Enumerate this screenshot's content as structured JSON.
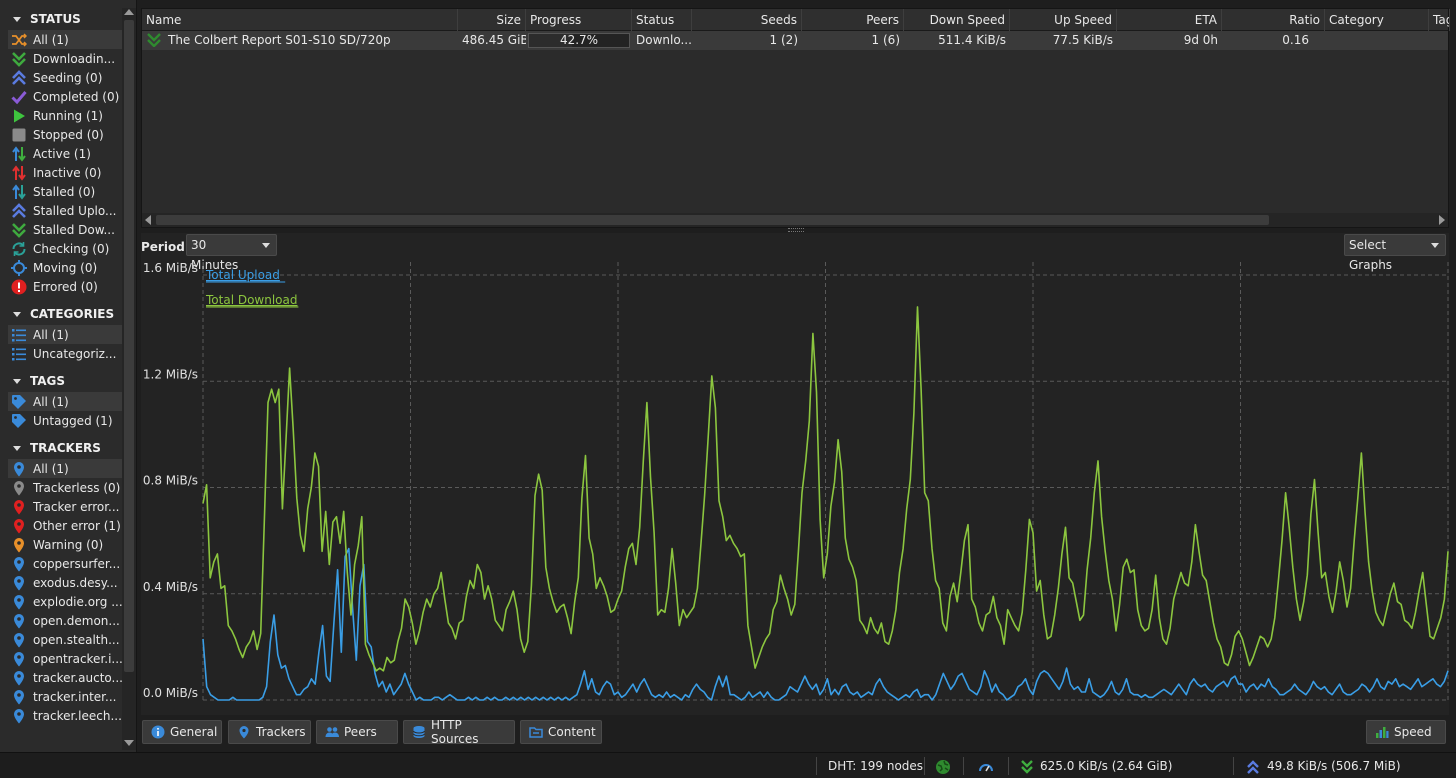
{
  "sidebar": {
    "status_title": "STATUS",
    "status_items": [
      {
        "label": "All (1)",
        "icon": "all-icon",
        "color": "#e8902a"
      },
      {
        "label": "Downloadin...",
        "icon": "download-icon",
        "color": "#3faa3f"
      },
      {
        "label": "Seeding (0)",
        "icon": "seeding-icon",
        "color": "#5a7be0"
      },
      {
        "label": "Completed (0)",
        "icon": "check-icon",
        "color": "#8a5bd6"
      },
      {
        "label": "Running (1)",
        "icon": "play-icon",
        "color": "#3ec43e"
      },
      {
        "label": "Stopped (0)",
        "icon": "stop-icon",
        "color": "#8a8a8a"
      },
      {
        "label": "Active (1)",
        "icon": "active-arrows-icon",
        "color": "#3faa3f"
      },
      {
        "label": "Inactive (0)",
        "icon": "inactive-arrows-icon",
        "color": "#e03030"
      },
      {
        "label": "Stalled (0)",
        "icon": "stalled-arrows-icon",
        "color": "#3a9ad9"
      },
      {
        "label": "Stalled Uplo...",
        "icon": "stalled-upload-icon",
        "color": "#5a7be0"
      },
      {
        "label": "Stalled Dow...",
        "icon": "stalled-download-icon",
        "color": "#3faa3f"
      },
      {
        "label": "Checking (0)",
        "icon": "checking-icon",
        "color": "#2aa198"
      },
      {
        "label": "Moving (0)",
        "icon": "moving-icon",
        "color": "#3a8ad9"
      },
      {
        "label": "Errored (0)",
        "icon": "error-icon",
        "color": "#e02020"
      }
    ],
    "categories_title": "CATEGORIES",
    "category_items": [
      {
        "label": "All (1)",
        "icon": "list-icon"
      },
      {
        "label": "Uncategoriz...",
        "icon": "list-icon"
      }
    ],
    "tags_title": "TAGS",
    "tag_items": [
      {
        "label": "All (1)",
        "icon": "tag-icon"
      },
      {
        "label": "Untagged (1)",
        "icon": "tag-icon"
      }
    ],
    "trackers_title": "TRACKERS",
    "tracker_items": [
      {
        "label": "All (1)",
        "color": "#3a8ad9"
      },
      {
        "label": "Trackerless (0)",
        "color": "#8a8a8a"
      },
      {
        "label": "Tracker error...",
        "color": "#e02020"
      },
      {
        "label": "Other error (1)",
        "color": "#e02020"
      },
      {
        "label": "Warning (0)",
        "color": "#e8902a"
      },
      {
        "label": "coppersurfer...",
        "color": "#3a8ad9"
      },
      {
        "label": "exodus.desy...",
        "color": "#3a8ad9"
      },
      {
        "label": "explodie.org ...",
        "color": "#3a8ad9"
      },
      {
        "label": "open.demon...",
        "color": "#3a8ad9"
      },
      {
        "label": "open.stealth...",
        "color": "#3a8ad9"
      },
      {
        "label": "opentracker.i...",
        "color": "#3a8ad9"
      },
      {
        "label": "tracker.aucto...",
        "color": "#3a8ad9"
      },
      {
        "label": "tracker.inter...",
        "color": "#3a8ad9"
      },
      {
        "label": "tracker.leech...",
        "color": "#3a8ad9"
      }
    ]
  },
  "table": {
    "columns": [
      "Name",
      "Size",
      "Progress",
      "Status",
      "Seeds",
      "Peers",
      "Down Speed",
      "Up Speed",
      "ETA",
      "Ratio",
      "Category",
      "Tag"
    ],
    "row": {
      "name": "The Colbert Report S01-S10 SD/720p",
      "size": "486.45 GiB",
      "progress": 0.427,
      "progress_text": "42.7%",
      "status": "Downlo...",
      "seeds": "1 (2)",
      "peers": "1 (6)",
      "down_speed": "511.4 KiB/s",
      "up_speed": "77.5 KiB/s",
      "eta": "9d 0h",
      "ratio": "0.16",
      "status_icon": "downloading-icon",
      "status_color": "#2f8a2f"
    }
  },
  "graph": {
    "period_label": "Period:",
    "period_value": "30 Minutes",
    "select_graphs_label": "Select Graphs"
  },
  "chart_data": {
    "type": "line",
    "title": "",
    "xlabel": "",
    "ylabel": "",
    "ylim": [
      0,
      1.6
    ],
    "y_ticks": [
      0.0,
      0.4,
      0.8,
      1.2,
      1.6
    ],
    "y_tick_labels": [
      "0.0 MiB/s",
      "0.4 MiB/s",
      "0.8 MiB/s",
      "1.2 MiB/s",
      "1.6 MiB/s"
    ],
    "grid": true,
    "legend_position": "top-left",
    "series": [
      {
        "name": "Total Upload",
        "color": "#3a9ee6",
        "values": [
          0.23,
          0.05,
          0.02,
          0.01,
          0.0,
          0.0,
          0.0,
          0.0,
          0.01,
          0.0,
          0.0,
          0.0,
          0.0,
          0.0,
          0.0,
          0.0,
          0.01,
          0.05,
          0.22,
          0.32,
          0.17,
          0.12,
          0.13,
          0.08,
          0.05,
          0.02,
          0.02,
          0.04,
          0.05,
          0.08,
          0.06,
          0.18,
          0.28,
          0.09,
          0.07,
          0.29,
          0.49,
          0.18,
          0.54,
          0.57,
          0.35,
          0.15,
          0.43,
          0.51,
          0.22,
          0.2,
          0.1,
          0.05,
          0.07,
          0.03,
          0.06,
          0.02,
          0.04,
          0.06,
          0.1,
          0.06,
          0.03,
          0.0,
          0.01,
          0.0,
          0.0,
          0.0,
          0.01,
          0.01,
          0.0,
          0.01,
          0.02,
          0.01,
          0.0,
          0.0,
          0.0,
          0.01,
          0.0,
          0.01,
          0.0,
          0.0,
          0.01,
          0.0,
          0.01,
          0.0,
          0.0,
          0.01,
          0.0,
          0.01,
          0.0,
          0.01,
          0.0,
          0.01,
          0.0,
          0.01,
          0.0,
          0.01,
          0.0,
          0.01,
          0.0,
          0.01,
          0.0,
          0.01,
          0.0,
          0.01,
          0.02,
          0.06,
          0.11,
          0.04,
          0.08,
          0.03,
          0.02,
          0.05,
          0.07,
          0.06,
          0.02,
          0.03,
          0.01,
          0.02,
          0.04,
          0.06,
          0.03,
          0.06,
          0.08,
          0.05,
          0.02,
          0.01,
          0.02,
          0.01,
          0.03,
          0.01,
          0.02,
          0.01,
          0.0,
          0.02,
          0.01,
          0.04,
          0.06,
          0.04,
          0.03,
          0.01,
          0.0,
          0.05,
          0.09,
          0.05,
          0.09,
          0.02,
          0.02,
          0.01,
          0.0,
          0.01,
          0.03,
          0.01,
          0.02,
          0.03,
          0.01,
          0.03,
          0.01,
          0.0,
          0.0,
          0.01,
          0.02,
          0.05,
          0.04,
          0.03,
          0.06,
          0.09,
          0.06,
          0.04,
          0.06,
          0.02,
          0.04,
          0.08,
          0.02,
          0.04,
          0.02,
          0.05,
          0.06,
          0.03,
          0.02,
          0.03,
          0.01,
          0.02,
          0.03,
          0.02,
          0.06,
          0.08,
          0.05,
          0.03,
          0.02,
          0.01,
          0.0,
          0.01,
          0.02,
          0.01,
          0.03,
          0.04,
          0.01,
          0.02,
          0.02,
          0.0,
          0.02,
          0.06,
          0.1,
          0.07,
          0.04,
          0.06,
          0.09,
          0.1,
          0.07,
          0.04,
          0.03,
          0.02,
          0.05,
          0.11,
          0.08,
          0.03,
          0.06,
          0.03,
          0.02,
          0.0,
          0.01,
          0.02,
          0.05,
          0.06,
          0.08,
          0.04,
          0.02,
          0.07,
          0.1,
          0.11,
          0.1,
          0.08,
          0.06,
          0.04,
          0.07,
          0.12,
          0.06,
          0.04,
          0.05,
          0.03,
          0.03,
          0.08,
          0.03,
          0.02,
          0.01,
          0.02,
          0.04,
          0.07,
          0.03,
          0.02,
          0.04,
          0.08,
          0.03,
          0.02,
          0.02,
          0.01,
          0.02,
          0.01,
          0.01,
          0.02,
          0.03,
          0.04,
          0.03,
          0.02,
          0.04,
          0.06,
          0.04,
          0.02,
          0.06,
          0.08,
          0.06,
          0.05,
          0.06,
          0.04,
          0.03,
          0.05,
          0.06,
          0.07,
          0.05,
          0.08,
          0.09,
          0.06,
          0.06,
          0.03,
          0.05,
          0.06,
          0.04,
          0.06,
          0.05,
          0.08,
          0.05,
          0.04,
          0.02,
          0.02,
          0.03,
          0.04,
          0.06,
          0.04,
          0.03,
          0.02,
          0.04,
          0.07,
          0.05,
          0.04,
          0.05,
          0.03,
          0.02,
          0.04,
          0.06,
          0.03,
          0.02,
          0.02,
          0.03,
          0.04,
          0.06,
          0.05,
          0.03,
          0.05,
          0.08,
          0.05,
          0.04,
          0.07,
          0.06,
          0.08,
          0.05,
          0.06,
          0.05,
          0.04,
          0.06,
          0.08,
          0.05,
          0.06,
          0.07,
          0.08,
          0.06,
          0.05,
          0.07,
          0.11
        ]
      },
      {
        "name": "Total Download",
        "color": "#8cc63f",
        "values": [
          0.74,
          0.81,
          0.46,
          0.52,
          0.55,
          0.42,
          0.43,
          0.28,
          0.26,
          0.23,
          0.19,
          0.16,
          0.2,
          0.22,
          0.26,
          0.19,
          0.25,
          0.67,
          1.12,
          1.17,
          1.12,
          1.17,
          0.72,
          0.98,
          1.25,
          1.02,
          0.76,
          0.62,
          0.56,
          0.72,
          0.8,
          0.93,
          0.88,
          0.56,
          0.71,
          0.51,
          0.67,
          0.69,
          0.59,
          0.71,
          0.48,
          0.32,
          0.51,
          0.58,
          0.69,
          0.21,
          0.17,
          0.14,
          0.11,
          0.12,
          0.11,
          0.16,
          0.14,
          0.15,
          0.22,
          0.27,
          0.38,
          0.35,
          0.29,
          0.21,
          0.26,
          0.33,
          0.38,
          0.35,
          0.4,
          0.42,
          0.48,
          0.38,
          0.29,
          0.27,
          0.23,
          0.29,
          0.3,
          0.39,
          0.45,
          0.42,
          0.51,
          0.48,
          0.38,
          0.43,
          0.38,
          0.3,
          0.28,
          0.26,
          0.34,
          0.37,
          0.41,
          0.34,
          0.23,
          0.18,
          0.22,
          0.43,
          0.77,
          0.85,
          0.79,
          0.5,
          0.42,
          0.37,
          0.33,
          0.35,
          0.36,
          0.31,
          0.25,
          0.37,
          0.46,
          0.76,
          0.92,
          0.61,
          0.55,
          0.42,
          0.46,
          0.43,
          0.39,
          0.33,
          0.34,
          0.38,
          0.41,
          0.5,
          0.57,
          0.59,
          0.51,
          0.65,
          0.9,
          1.12,
          0.84,
          0.63,
          0.32,
          0.34,
          0.33,
          0.42,
          0.57,
          0.44,
          0.28,
          0.34,
          0.31,
          0.33,
          0.35,
          0.42,
          0.59,
          0.77,
          0.99,
          1.22,
          1.1,
          0.75,
          0.69,
          0.6,
          0.62,
          0.59,
          0.57,
          0.54,
          0.55,
          0.28,
          0.2,
          0.12,
          0.16,
          0.2,
          0.23,
          0.25,
          0.34,
          0.37,
          0.47,
          0.42,
          0.38,
          0.32,
          0.36,
          0.56,
          0.78,
          0.9,
          1.05,
          1.38,
          1.16,
          0.68,
          0.46,
          0.55,
          0.73,
          0.82,
          0.98,
          0.86,
          0.61,
          0.53,
          0.5,
          0.45,
          0.3,
          0.28,
          0.25,
          0.31,
          0.27,
          0.25,
          0.29,
          0.22,
          0.21,
          0.26,
          0.34,
          0.48,
          0.57,
          0.72,
          0.83,
          1.08,
          1.48,
          1.17,
          0.78,
          0.75,
          0.57,
          0.45,
          0.42,
          0.29,
          0.26,
          0.39,
          0.44,
          0.37,
          0.48,
          0.6,
          0.66,
          0.38,
          0.35,
          0.29,
          0.26,
          0.32,
          0.33,
          0.39,
          0.31,
          0.28,
          0.21,
          0.34,
          0.31,
          0.28,
          0.26,
          0.33,
          0.49,
          0.68,
          0.63,
          0.41,
          0.45,
          0.32,
          0.23,
          0.24,
          0.32,
          0.42,
          0.55,
          0.65,
          0.46,
          0.44,
          0.37,
          0.3,
          0.32,
          0.49,
          0.61,
          0.78,
          0.9,
          0.69,
          0.56,
          0.45,
          0.38,
          0.26,
          0.36,
          0.5,
          0.53,
          0.48,
          0.49,
          0.34,
          0.28,
          0.26,
          0.27,
          0.34,
          0.47,
          0.31,
          0.23,
          0.21,
          0.27,
          0.38,
          0.43,
          0.48,
          0.44,
          0.43,
          0.52,
          0.66,
          0.56,
          0.47,
          0.45,
          0.37,
          0.29,
          0.23,
          0.2,
          0.14,
          0.13,
          0.17,
          0.24,
          0.26,
          0.23,
          0.18,
          0.13,
          0.16,
          0.2,
          0.24,
          0.23,
          0.2,
          0.23,
          0.31,
          0.45,
          0.6,
          0.78,
          0.65,
          0.5,
          0.38,
          0.3,
          0.37,
          0.47,
          0.7,
          0.83,
          0.63,
          0.46,
          0.48,
          0.39,
          0.33,
          0.41,
          0.52,
          0.45,
          0.35,
          0.42,
          0.6,
          0.76,
          0.93,
          0.71,
          0.52,
          0.41,
          0.33,
          0.3,
          0.28,
          0.34,
          0.4,
          0.44,
          0.37,
          0.36,
          0.3,
          0.29,
          0.27,
          0.33,
          0.41,
          0.48,
          0.36,
          0.24,
          0.23,
          0.27,
          0.31,
          0.38,
          0.56
        ]
      }
    ]
  },
  "tabs": [
    {
      "label": "General",
      "icon": "info-icon"
    },
    {
      "label": "Trackers",
      "icon": "pin-icon"
    },
    {
      "label": "Peers",
      "icon": "peers-icon"
    },
    {
      "label": "HTTP Sources",
      "icon": "database-icon"
    },
    {
      "label": "Content",
      "icon": "folder-icon"
    },
    {
      "label": "Speed",
      "icon": "bar-chart-icon"
    }
  ],
  "statusbar": {
    "dht": "DHT: 199 nodes",
    "download": "625.0 KiB/s (2.64 GiB)",
    "upload": "49.8 KiB/s (506.7 MiB)"
  }
}
